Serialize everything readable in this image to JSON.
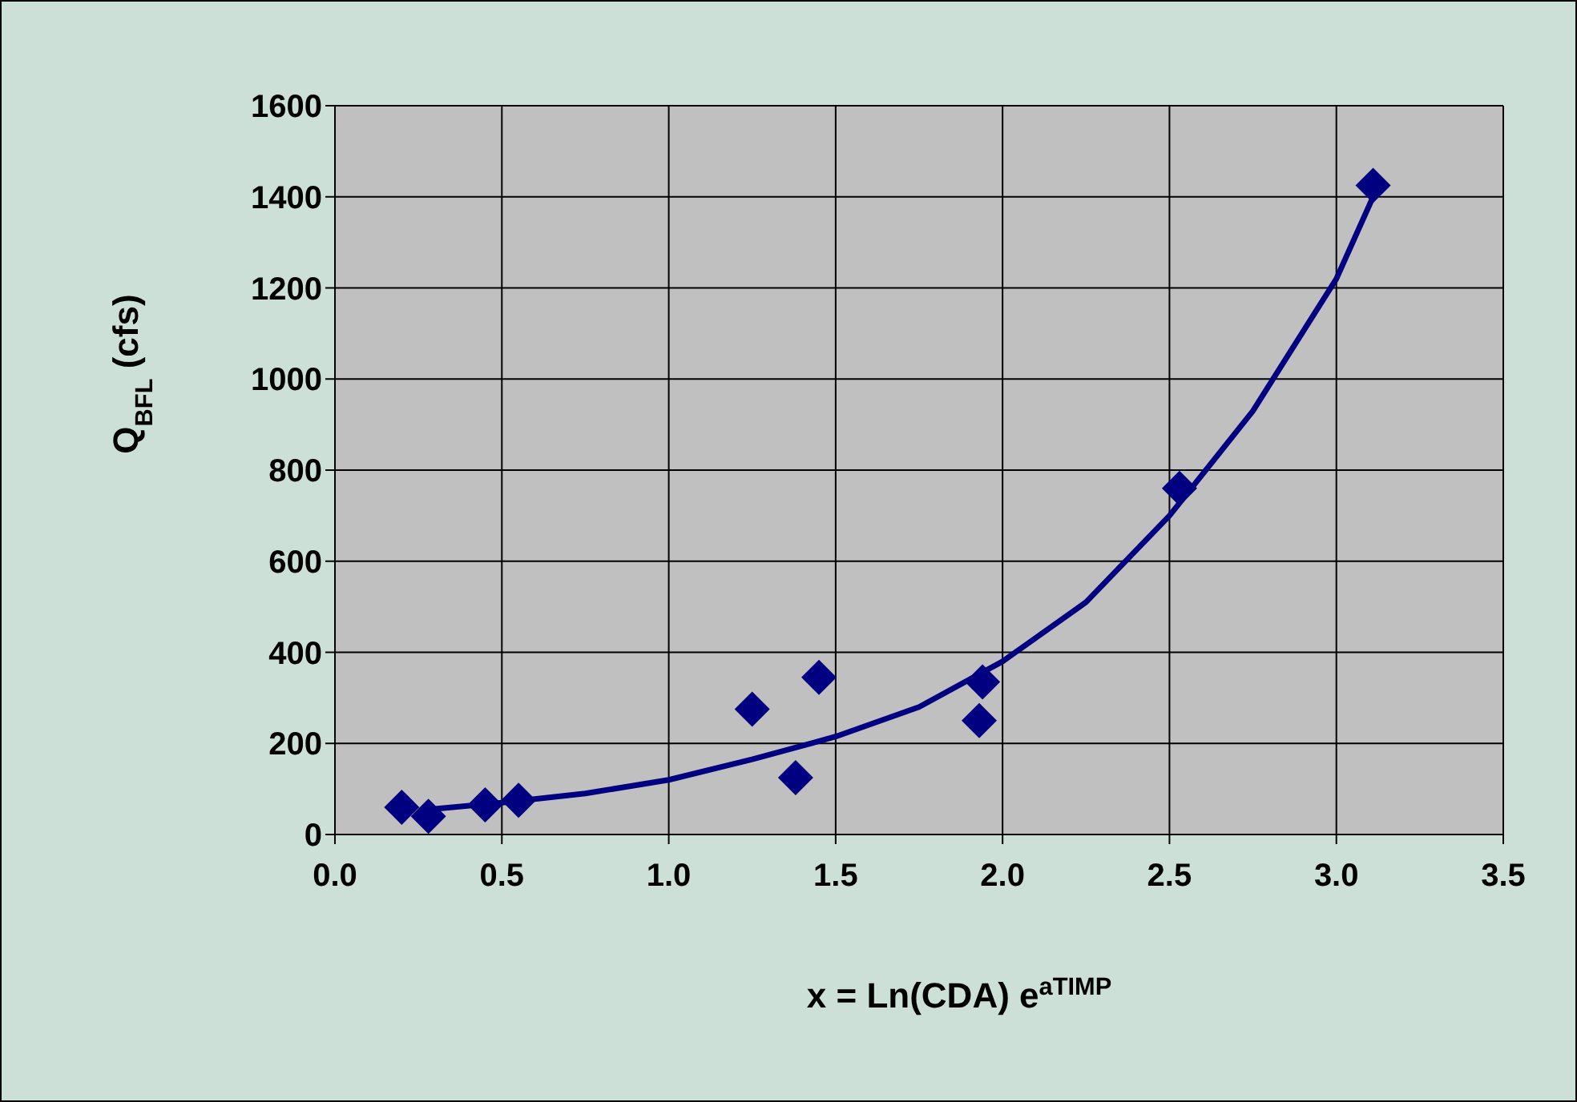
{
  "chart_data": {
    "type": "scatter",
    "xlabel": "x = Ln(CDA) e$^{aTIMP}$",
    "ylabel": "Q$_{BFL}$ (cfs)",
    "xlim": [
      0,
      3.5
    ],
    "xticks": [
      {
        "value": 0,
        "label": "0.0"
      },
      {
        "value": 0.5,
        "label": "0.5"
      },
      {
        "value": 1,
        "label": "1.0"
      },
      {
        "value": 1.5,
        "label": "1.5"
      },
      {
        "value": 2,
        "label": "2.0"
      },
      {
        "value": 2.5,
        "label": "2.5"
      },
      {
        "value": 3,
        "label": "3.0"
      },
      {
        "value": 3.5,
        "label": "3.5"
      }
    ],
    "ylim": [
      0,
      1600
    ],
    "yticks": [
      0,
      200,
      400,
      600,
      800,
      1000,
      1200,
      1400,
      1600
    ],
    "grid": true,
    "legend": false,
    "series": [
      {
        "color": "#000080",
        "marker": "diamond",
        "x": [
          0.2,
          0.28,
          0.45,
          0.55,
          1.25,
          1.38,
          1.45,
          1.93,
          1.94,
          2.53,
          3.11
        ],
        "values": [
          60,
          40,
          65,
          75,
          275,
          125,
          345,
          250,
          335,
          760,
          1425
        ]
      },
      {
        "type": "line",
        "color": "#000080",
        "marker": "none",
        "line_style": "solid",
        "x": [
          0.28,
          0.5,
          0.75,
          1.0,
          1.25,
          1.5,
          1.75,
          2.0,
          2.25,
          2.5,
          2.75,
          3.0,
          3.11
        ],
        "values": [
          55,
          70,
          90,
          120,
          165,
          215,
          280,
          380,
          510,
          700,
          930,
          1220,
          1400
        ]
      }
    ]
  }
}
